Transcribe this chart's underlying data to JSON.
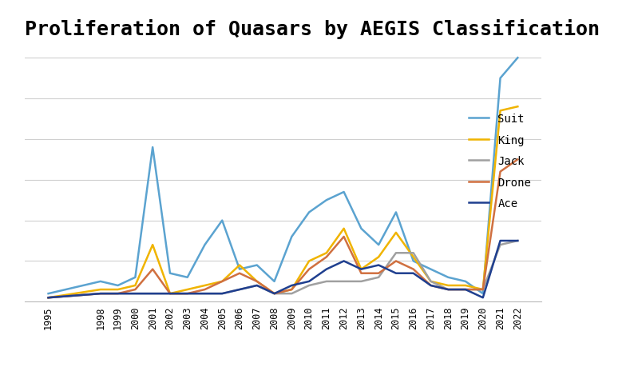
{
  "title": "Proliferation of Quasars by AEGIS Classification",
  "years": [
    1995,
    1998,
    1999,
    2000,
    2001,
    2002,
    2003,
    2004,
    2005,
    2006,
    2007,
    2008,
    2009,
    2010,
    2011,
    2012,
    2013,
    2014,
    2015,
    2016,
    2017,
    2018,
    2019,
    2020,
    2021,
    2022
  ],
  "series": {
    "Suit": [
      2,
      5,
      4,
      6,
      38,
      7,
      6,
      14,
      20,
      8,
      9,
      5,
      16,
      22,
      25,
      27,
      18,
      14,
      22,
      10,
      8,
      6,
      5,
      2,
      55,
      60
    ],
    "King": [
      1,
      3,
      3,
      4,
      14,
      2,
      3,
      4,
      5,
      9,
      5,
      2,
      3,
      10,
      12,
      18,
      8,
      11,
      17,
      11,
      5,
      4,
      4,
      3,
      47,
      48
    ],
    "Jack": [
      1,
      2,
      2,
      2,
      2,
      2,
      2,
      2,
      2,
      3,
      4,
      2,
      2,
      4,
      5,
      5,
      5,
      6,
      12,
      12,
      5,
      3,
      3,
      3,
      14,
      15
    ],
    "Drone": [
      1,
      2,
      2,
      3,
      8,
      2,
      2,
      3,
      5,
      7,
      5,
      2,
      3,
      8,
      11,
      16,
      7,
      7,
      10,
      8,
      4,
      3,
      3,
      3,
      32,
      35
    ],
    "Ace": [
      1,
      2,
      2,
      2,
      2,
      2,
      2,
      2,
      2,
      3,
      4,
      2,
      4,
      5,
      8,
      10,
      8,
      9,
      7,
      7,
      4,
      3,
      3,
      1,
      15,
      15
    ]
  },
  "colors": {
    "Suit": "#5BA3D0",
    "King": "#F0B400",
    "Jack": "#A0A0A0",
    "Drone": "#D07040",
    "Ace": "#1F3F8F"
  },
  "background_color": "#FFFFFF",
  "grid_color": "#D0D0D0",
  "title_fontsize": 18,
  "tick_fontsize": 8.5,
  "legend_fontsize": 10,
  "figsize": [
    7.79,
    4.85
  ],
  "dpi": 100,
  "legend_order": [
    "Suit",
    "King",
    "Jack",
    "Drone",
    "Ace"
  ]
}
